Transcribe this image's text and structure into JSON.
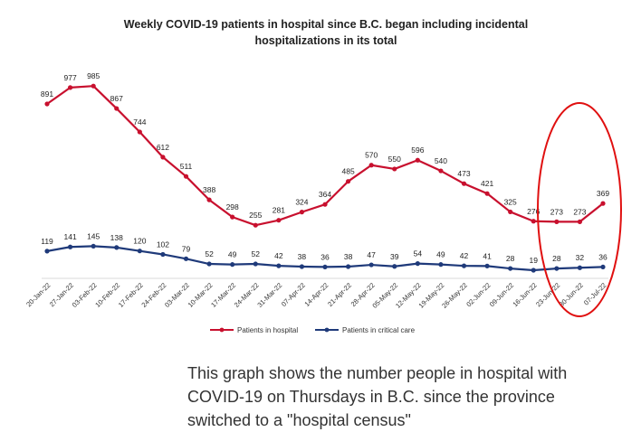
{
  "chart_data": {
    "type": "line",
    "title_line1": "Weekly COVID-19 patients in hospital since B.C. began including incidental",
    "title_line2": "hospitalizations in its total",
    "categories": [
      "20-Jan-22",
      "27-Jan-22",
      "03-Feb-22",
      "10-Feb-22",
      "17-Feb-22",
      "24-Feb-22",
      "03-Mar-22",
      "10-Mar-22",
      "17-Mar-22",
      "24-Mar-22",
      "31-Mar-22",
      "07-Apr-22",
      "14-Apr-22",
      "21-Apr-22",
      "28-Apr-22",
      "05-May-22",
      "12-May-22",
      "19-May-22",
      "26-May-22",
      "02-Jun-22",
      "09-Jun-22",
      "16-Jun-22",
      "23-Jun-22",
      "30-Jun-22",
      "07-Jul-22"
    ],
    "series": [
      {
        "name": "Patients in hospital",
        "color": "#c8102e",
        "values": [
          891,
          977,
          985,
          867,
          744,
          612,
          511,
          388,
          298,
          255,
          281,
          324,
          364,
          485,
          570,
          550,
          596,
          540,
          473,
          421,
          325,
          276,
          273,
          273,
          369
        ]
      },
      {
        "name": "Patients in critical care",
        "color": "#1f3a7a",
        "values": [
          119,
          141,
          145,
          138,
          120,
          102,
          79,
          52,
          49,
          52,
          42,
          38,
          36,
          38,
          47,
          39,
          54,
          49,
          42,
          41,
          28,
          19,
          28,
          32,
          36
        ]
      }
    ],
    "legend_position": "bottom",
    "grid": false,
    "highlight_color": "#e01010"
  },
  "caption": "This graph shows the number people in hospital with COVID-19 on Thursdays in B.C. since the province switched to a \"hospital census\""
}
